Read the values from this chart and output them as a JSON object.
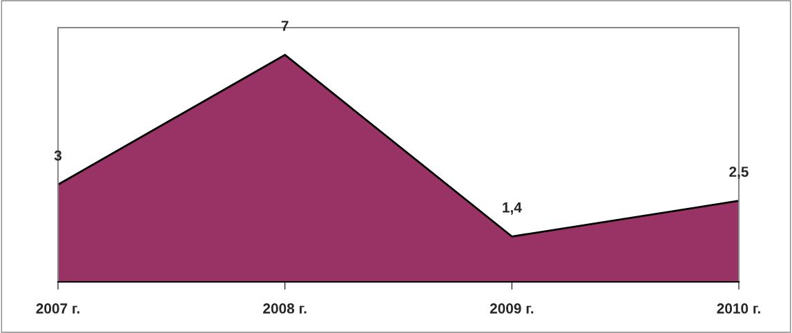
{
  "chart_data": {
    "type": "area",
    "categories": [
      "2007 г.",
      "2008 г.",
      "2009 г.",
      "2010 г."
    ],
    "series": [
      {
        "color": "#993366",
        "values": [
          3,
          7,
          1.4,
          2.5
        ],
        "value_labels": [
          "3",
          "7",
          "1,4",
          "2,5"
        ]
      }
    ],
    "grid": false,
    "tick_labels": "x"
  }
}
